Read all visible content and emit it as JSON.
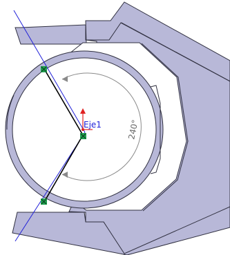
{
  "sketch": {
    "axis_label": "Eje1",
    "angle_dimension": "240°"
  },
  "colors": {
    "background": "#ffffff",
    "part_face": "#b8b8d8",
    "inner_face": "#ffffff",
    "edge": "#2f2f3f",
    "axis_line": "#2020d8",
    "dimension": "#8a8a8a",
    "sketch_line": "#000000",
    "relation_point": "#1fa050",
    "origin_arrow": "#e02020"
  }
}
